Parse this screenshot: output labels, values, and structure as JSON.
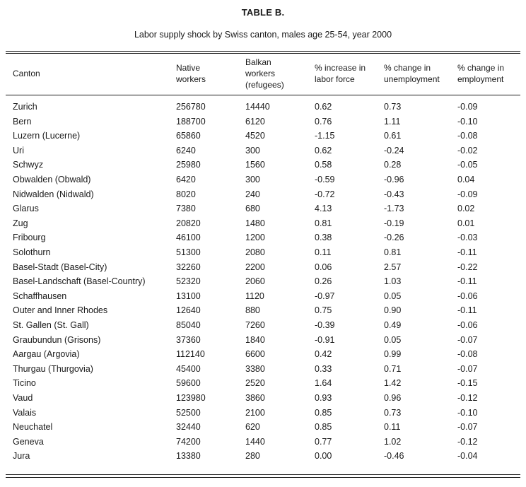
{
  "table_title": "TABLE B.",
  "subtitle": "Labor supply shock by Swiss canton, males age 25-54, year 2000",
  "headers": [
    [
      "Canton"
    ],
    [
      "Native",
      "workers"
    ],
    [
      "Balkan",
      "workers",
      "(refugees)"
    ],
    [
      "% increase in",
      "labor force"
    ],
    [
      "% change in",
      "unemployment"
    ],
    [
      "% change in",
      "employment"
    ]
  ],
  "rows": [
    [
      "Zurich",
      "256780",
      "14440",
      "0.62",
      "0.73",
      "-0.09"
    ],
    [
      "Bern",
      "188700",
      "6120",
      "0.76",
      "1.11",
      "-0.10"
    ],
    [
      "Luzern (Lucerne)",
      "65860",
      "4520",
      "-1.15",
      "0.61",
      "-0.08"
    ],
    [
      "Uri",
      "6240",
      "300",
      "0.62",
      "-0.24",
      "-0.02"
    ],
    [
      "Schwyz",
      "25980",
      "1560",
      "0.58",
      "0.28",
      "-0.05"
    ],
    [
      "Obwalden (Obwald)",
      "6420",
      "300",
      "-0.59",
      "-0.96",
      "0.04"
    ],
    [
      "Nidwalden (Nidwald)",
      "8020",
      "240",
      "-0.72",
      "-0.43",
      "-0.09"
    ],
    [
      "Glarus",
      "7380",
      "680",
      "4.13",
      "-1.73",
      "0.02"
    ],
    [
      "Zug",
      "20820",
      "1480",
      "0.81",
      "-0.19",
      "0.01"
    ],
    [
      "Fribourg",
      "46100",
      "1200",
      "0.38",
      "-0.26",
      "-0.03"
    ],
    [
      "Solothurn",
      "51300",
      "2080",
      "0.11",
      "0.81",
      "-0.11"
    ],
    [
      "Basel-Stadt (Basel-City)",
      "32260",
      "2200",
      "0.06",
      "2.57",
      "-0.22"
    ],
    [
      "Basel-Landschaft (Basel-Country)",
      "52320",
      "2060",
      "0.26",
      "1.03",
      "-0.11"
    ],
    [
      "Schaffhausen",
      "13100",
      "1120",
      "-0.97",
      "0.05",
      "-0.06"
    ],
    [
      "Outer and Inner Rhodes",
      "12640",
      "880",
      "0.75",
      "0.90",
      "-0.11"
    ],
    [
      "St. Gallen (St. Gall)",
      "85040",
      "7260",
      "-0.39",
      "0.49",
      "-0.06"
    ],
    [
      "Graubundun (Grisons)",
      "37360",
      "1840",
      "-0.91",
      "0.05",
      "-0.07"
    ],
    [
      "Aargau (Argovia)",
      "112140",
      "6600",
      "0.42",
      "0.99",
      "-0.08"
    ],
    [
      "Thurgau (Thurgovia)",
      "45400",
      "3380",
      "0.33",
      "0.71",
      "-0.07"
    ],
    [
      "Ticino",
      "59600",
      "2520",
      "1.64",
      "1.42",
      "-0.15"
    ],
    [
      "Vaud",
      "123980",
      "3860",
      "0.93",
      "0.96",
      "-0.12"
    ],
    [
      "Valais",
      "52500",
      "2100",
      "0.85",
      "0.73",
      "-0.10"
    ],
    [
      "Neuchatel",
      "32440",
      "620",
      "0.85",
      "0.11",
      "-0.07"
    ],
    [
      "Geneva",
      "74200",
      "1440",
      "0.77",
      "1.02",
      "-0.12"
    ],
    [
      "Jura",
      "13380",
      "280",
      "0.00",
      "-0.46",
      "-0.04"
    ]
  ]
}
